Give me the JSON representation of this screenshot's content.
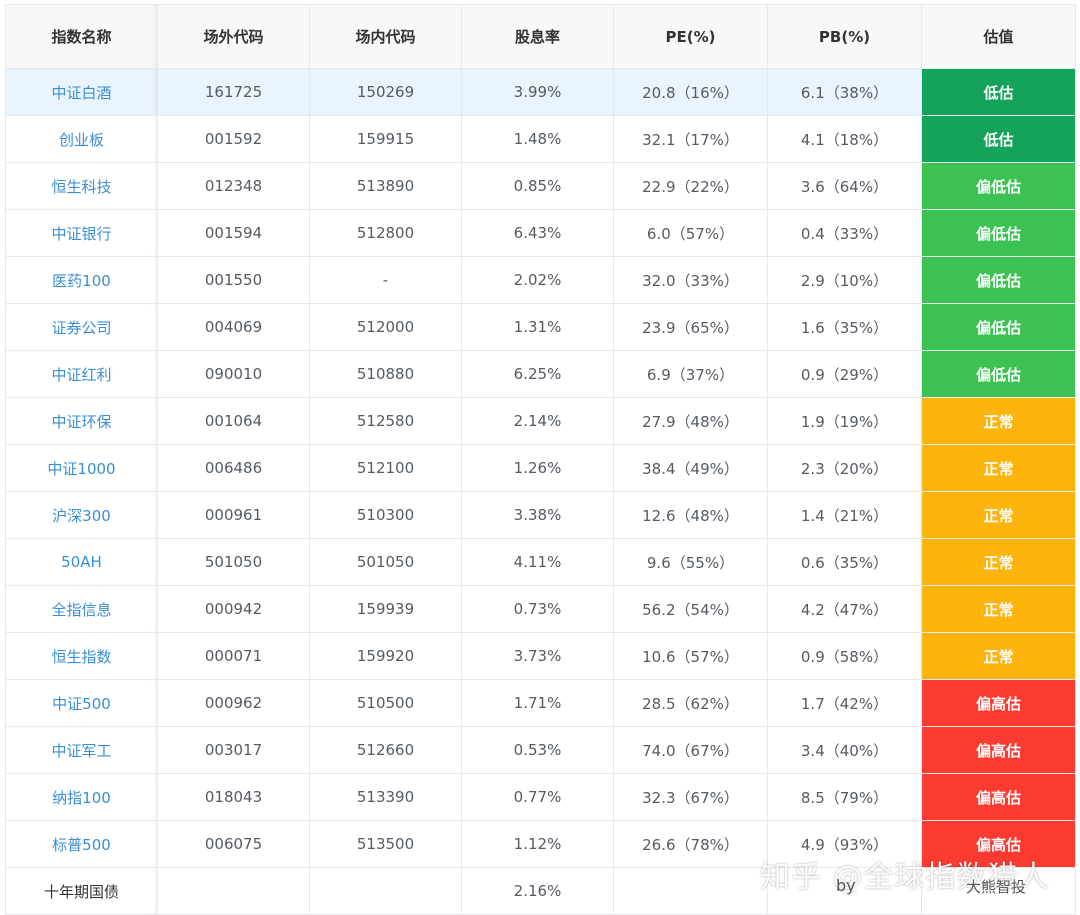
{
  "headers": [
    "指数名称",
    "场外代码",
    "场内代码",
    "股息率",
    "PE(%)",
    "PB(%)",
    "估值"
  ],
  "rows": [
    {
      "name": "中证白酒",
      "off": "161725",
      "on": "150269",
      "div": "3.99%",
      "pe": "20.8（16%）",
      "pb": "6.1（38%）",
      "val": "低估",
      "cls": "low"
    },
    {
      "name": "创业板",
      "off": "001592",
      "on": "159915",
      "div": "1.48%",
      "pe": "32.1（17%）",
      "pb": "4.1（18%）",
      "val": "低估",
      "cls": "low"
    },
    {
      "name": "恒生科技",
      "off": "012348",
      "on": "513890",
      "div": "0.85%",
      "pe": "22.9（22%）",
      "pb": "3.6（64%）",
      "val": "偏低估",
      "cls": "mid-low"
    },
    {
      "name": "中证银行",
      "off": "001594",
      "on": "512800",
      "div": "6.43%",
      "pe": "6.0（57%）",
      "pb": "0.4（33%）",
      "val": "偏低估",
      "cls": "mid-low"
    },
    {
      "name": "医药100",
      "off": "001550",
      "on": "-",
      "div": "2.02%",
      "pe": "32.0（33%）",
      "pb": "2.9（10%）",
      "val": "偏低估",
      "cls": "mid-low"
    },
    {
      "name": "证券公司",
      "off": "004069",
      "on": "512000",
      "div": "1.31%",
      "pe": "23.9（65%）",
      "pb": "1.6（35%）",
      "val": "偏低估",
      "cls": "mid-low"
    },
    {
      "name": "中证红利",
      "off": "090010",
      "on": "510880",
      "div": "6.25%",
      "pe": "6.9（37%）",
      "pb": "0.9（29%）",
      "val": "偏低估",
      "cls": "mid-low"
    },
    {
      "name": "中证环保",
      "off": "001064",
      "on": "512580",
      "div": "2.14%",
      "pe": "27.9（48%）",
      "pb": "1.9（19%）",
      "val": "正常",
      "cls": "normal"
    },
    {
      "name": "中证1000",
      "off": "006486",
      "on": "512100",
      "div": "1.26%",
      "pe": "38.4（49%）",
      "pb": "2.3（20%）",
      "val": "正常",
      "cls": "normal"
    },
    {
      "name": "沪深300",
      "off": "000961",
      "on": "510300",
      "div": "3.38%",
      "pe": "12.6（48%）",
      "pb": "1.4（21%）",
      "val": "正常",
      "cls": "normal"
    },
    {
      "name": "50AH",
      "off": "501050",
      "on": "501050",
      "div": "4.11%",
      "pe": "9.6（55%）",
      "pb": "0.6（35%）",
      "val": "正常",
      "cls": "normal"
    },
    {
      "name": "全指信息",
      "off": "000942",
      "on": "159939",
      "div": "0.73%",
      "pe": "56.2（54%）",
      "pb": "4.2（47%）",
      "val": "正常",
      "cls": "normal"
    },
    {
      "name": "恒生指数",
      "off": "000071",
      "on": "159920",
      "div": "3.73%",
      "pe": "10.6（57%）",
      "pb": "0.9（58%）",
      "val": "正常",
      "cls": "normal"
    },
    {
      "name": "中证500",
      "off": "000962",
      "on": "510500",
      "div": "1.71%",
      "pe": "28.5（62%）",
      "pb": "1.7（42%）",
      "val": "偏高估",
      "cls": "high"
    },
    {
      "name": "中证军工",
      "off": "003017",
      "on": "512660",
      "div": "0.53%",
      "pe": "74.0（67%）",
      "pb": "3.4（40%）",
      "val": "偏高估",
      "cls": "high"
    },
    {
      "name": "纳指100",
      "off": "018043",
      "on": "513390",
      "div": "0.77%",
      "pe": "32.3（67%）",
      "pb": "8.5（79%）",
      "val": "偏高估",
      "cls": "high"
    },
    {
      "name": "标普500",
      "off": "006075",
      "on": "513500",
      "div": "1.12%",
      "pe": "26.6（78%）",
      "pb": "4.9（93%）",
      "val": "偏高估",
      "cls": "high"
    }
  ],
  "bond_row": {
    "name": "十年期国债",
    "div": "2.16%"
  },
  "watermark": "知乎 @全球指数猎人",
  "by": "by",
  "credit": "大熊智投",
  "colors": {
    "low": "#13a35a",
    "mid_low": "#3bc253",
    "normal": "#fdb40c",
    "high": "#fb3b32",
    "link": "#3a8ed6"
  }
}
